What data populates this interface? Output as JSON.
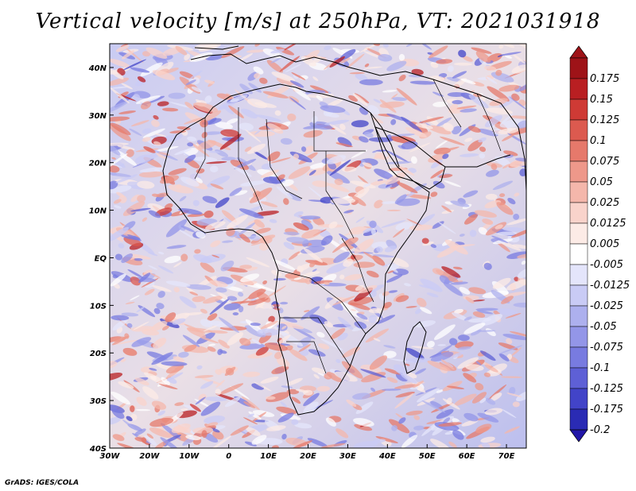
{
  "title": "Vertical velocity [m/s] at 250hPa, VT: 2021031918",
  "footer": "GrADS: IGES/COLA",
  "map": {
    "lon_range": [
      -30,
      75
    ],
    "lat_range": [
      -40,
      45
    ],
    "lat_ticks": [
      {
        "label": "40N",
        "value": 40
      },
      {
        "label": "30N",
        "value": 30
      },
      {
        "label": "20N",
        "value": 20
      },
      {
        "label": "10N",
        "value": 10
      },
      {
        "label": "EQ",
        "value": 0
      },
      {
        "label": "10S",
        "value": -10
      },
      {
        "label": "20S",
        "value": -20
      },
      {
        "label": "30S",
        "value": -30
      },
      {
        "label": "40S",
        "value": -40
      }
    ],
    "lon_ticks": [
      {
        "label": "30W",
        "value": -30
      },
      {
        "label": "20W",
        "value": -20
      },
      {
        "label": "10W",
        "value": -10
      },
      {
        "label": "0",
        "value": 0
      },
      {
        "label": "10E",
        "value": 10
      },
      {
        "label": "20E",
        "value": 20
      },
      {
        "label": "30E",
        "value": 30
      },
      {
        "label": "40E",
        "value": 40
      },
      {
        "label": "50E",
        "value": 50
      },
      {
        "label": "60E",
        "value": 60
      },
      {
        "label": "70E",
        "value": 70
      }
    ]
  },
  "colorbar": {
    "levels": [
      {
        "label": "0.175",
        "color": "#9e1318"
      },
      {
        "label": "0.15",
        "color": "#b91f22"
      },
      {
        "label": "0.125",
        "color": "#cf3a35"
      },
      {
        "label": "0.1",
        "color": "#dc5a4f"
      },
      {
        "label": "0.075",
        "color": "#e6796b"
      },
      {
        "label": "0.05",
        "color": "#ee988a"
      },
      {
        "label": "0.025",
        "color": "#f4b7ab"
      },
      {
        "label": "0.0125",
        "color": "#f9d3cb"
      },
      {
        "label": "0.005",
        "color": "#fcebe6"
      },
      {
        "label": "-0.005",
        "color": "#ffffff"
      },
      {
        "label": "-0.0125",
        "color": "#e4e5fb"
      },
      {
        "label": "-0.025",
        "color": "#c9cbf5"
      },
      {
        "label": "-0.05",
        "color": "#adb0ee"
      },
      {
        "label": "-0.075",
        "color": "#9396e8"
      },
      {
        "label": "-0.1",
        "color": "#787be0"
      },
      {
        "label": "-0.125",
        "color": "#5e60d6"
      },
      {
        "label": "-0.175",
        "color": "#4244c8"
      },
      {
        "label": "-0.2",
        "color": "#2a2bb4"
      }
    ],
    "top_arrow_color": "#9e1318",
    "bottom_arrow_color": "#2216a8"
  }
}
